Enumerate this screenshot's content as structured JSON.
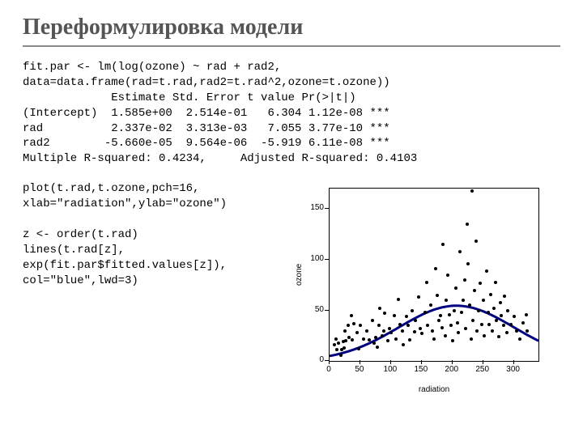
{
  "title": "Переформулировка модели",
  "code_top": "fit.par <- lm(log(ozone) ~ rad + rad2,\ndata=data.frame(rad=t.rad,rad2=t.rad^2,ozone=t.ozone))\n             Estimate Std. Error t value Pr(>|t|)\n(Intercept)  1.585e+00  2.514e-01   6.304 1.12e-08 ***\nrad          2.337e-02  3.313e-03   7.055 3.77e-10 ***\nrad2        -5.660e-05  9.564e-06  -5.919 6.11e-08 ***\nMultiple R-squared: 0.4234,     Adjusted R-squared: 0.4103",
  "code_left": "plot(t.rad,t.ozone,pch=16,\nxlab=\"radiation\",ylab=\"ozone\")\n\nz <- order(t.rad)\nlines(t.rad[z],\nexp(fit.par$fitted.values[z]),\ncol=\"blue\",lwd=3)",
  "chart": {
    "type": "scatter",
    "xlabel": "radiation",
    "ylabel": "ozone",
    "xlim": [
      0,
      340
    ],
    "ylim": [
      0,
      170
    ],
    "xticks": [
      0,
      50,
      100,
      150,
      200,
      250,
      300
    ],
    "yticks": [
      0,
      50,
      100,
      150
    ],
    "yticklabels": [
      "0",
      "50",
      "100",
      "150"
    ],
    "plot_bg": "#ffffff",
    "axis_color": "#000000",
    "point_color": "#000000",
    "curve_color": "#000080",
    "curve_width": 3,
    "tick_fontsize": 10,
    "label_fontsize": 10,
    "points": [
      [
        8,
        16
      ],
      [
        10,
        22
      ],
      [
        12,
        11
      ],
      [
        14,
        18
      ],
      [
        18,
        6
      ],
      [
        20,
        11
      ],
      [
        22,
        19
      ],
      [
        24,
        13
      ],
      [
        25,
        30
      ],
      [
        27,
        20
      ],
      [
        30,
        35
      ],
      [
        32,
        23
      ],
      [
        35,
        45
      ],
      [
        37,
        21
      ],
      [
        40,
        37
      ],
      [
        45,
        28
      ],
      [
        48,
        12
      ],
      [
        50,
        35
      ],
      [
        55,
        22
      ],
      [
        60,
        30
      ],
      [
        65,
        21
      ],
      [
        70,
        40
      ],
      [
        72,
        18
      ],
      [
        75,
        23
      ],
      [
        78,
        14
      ],
      [
        80,
        35
      ],
      [
        82,
        52
      ],
      [
        85,
        25
      ],
      [
        88,
        30
      ],
      [
        90,
        47
      ],
      [
        95,
        20
      ],
      [
        98,
        32
      ],
      [
        100,
        28
      ],
      [
        105,
        45
      ],
      [
        108,
        22
      ],
      [
        112,
        61
      ],
      [
        115,
        36
      ],
      [
        118,
        30
      ],
      [
        120,
        16
      ],
      [
        125,
        44
      ],
      [
        128,
        35
      ],
      [
        130,
        21
      ],
      [
        135,
        50
      ],
      [
        138,
        29
      ],
      [
        140,
        40
      ],
      [
        145,
        63
      ],
      [
        148,
        32
      ],
      [
        150,
        27
      ],
      [
        155,
        48
      ],
      [
        158,
        78
      ],
      [
        160,
        35
      ],
      [
        165,
        55
      ],
      [
        168,
        30
      ],
      [
        170,
        22
      ],
      [
        172,
        91
      ],
      [
        175,
        65
      ],
      [
        178,
        40
      ],
      [
        180,
        45
      ],
      [
        183,
        33
      ],
      [
        185,
        115
      ],
      [
        188,
        25
      ],
      [
        190,
        60
      ],
      [
        193,
        85
      ],
      [
        195,
        46
      ],
      [
        198,
        35
      ],
      [
        200,
        20
      ],
      [
        203,
        50
      ],
      [
        205,
        72
      ],
      [
        208,
        38
      ],
      [
        210,
        28
      ],
      [
        212,
        108
      ],
      [
        215,
        48
      ],
      [
        218,
        60
      ],
      [
        220,
        80
      ],
      [
        222,
        32
      ],
      [
        224,
        135
      ],
      [
        225,
        96
      ],
      [
        228,
        55
      ],
      [
        230,
        22
      ],
      [
        232,
        168
      ],
      [
        233,
        40
      ],
      [
        236,
        70
      ],
      [
        238,
        118
      ],
      [
        240,
        30
      ],
      [
        242,
        50
      ],
      [
        245,
        77
      ],
      [
        248,
        36
      ],
      [
        250,
        60
      ],
      [
        252,
        25
      ],
      [
        255,
        89
      ],
      [
        258,
        48
      ],
      [
        260,
        36
      ],
      [
        262,
        66
      ],
      [
        265,
        30
      ],
      [
        268,
        52
      ],
      [
        270,
        78
      ],
      [
        272,
        40
      ],
      [
        275,
        24
      ],
      [
        278,
        58
      ],
      [
        280,
        45
      ],
      [
        283,
        35
      ],
      [
        285,
        64
      ],
      [
        288,
        28
      ],
      [
        290,
        50
      ],
      [
        295,
        36
      ],
      [
        300,
        44
      ],
      [
        305,
        30
      ],
      [
        310,
        22
      ],
      [
        315,
        38
      ],
      [
        320,
        46
      ],
      [
        322,
        30
      ]
    ],
    "fit_coeffs": {
      "intercept": 1.585,
      "b_rad": 0.02337,
      "b_rad2": -5.66e-05
    }
  }
}
